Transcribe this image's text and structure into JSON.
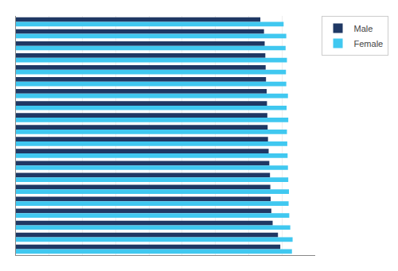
{
  "chart_data": {
    "type": "bar",
    "orientation": "horizontal",
    "categories": [
      null,
      null,
      null,
      null,
      null,
      null,
      null,
      null,
      null,
      null,
      null,
      null,
      null,
      null,
      null,
      null,
      null,
      null,
      null,
      null
    ],
    "series": [
      {
        "name": "Male",
        "color": "#1F3864",
        "values": [
          79.5,
          78.8,
          77.2,
          76.8,
          76.6,
          76.5,
          76.4,
          76.2,
          76.0,
          75.8,
          75.7,
          75.6,
          75.5,
          75.4,
          75.2,
          75.1,
          75.0,
          74.8,
          74.6,
          73.5
        ]
      },
      {
        "name": "Female",
        "color": "#40C8F0",
        "values": [
          83.0,
          83.2,
          82.5,
          82.2,
          82.0,
          82.1,
          81.9,
          81.8,
          81.7,
          81.6,
          81.5,
          81.9,
          81.4,
          81.8,
          81.3,
          81.2,
          81.5,
          81.1,
          81.3,
          80.5
        ]
      }
    ],
    "xlim": [
      0,
      90
    ],
    "xticks": [
      0,
      10,
      20,
      30,
      40,
      50,
      60,
      70,
      80,
      90
    ],
    "grid": true,
    "tick_labels": false,
    "legend": "upper right"
  }
}
